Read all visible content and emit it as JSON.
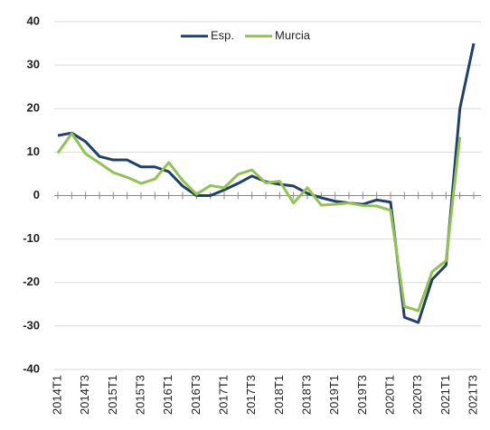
{
  "chart_data": {
    "type": "line",
    "categories": [
      "2014T1",
      null,
      "2014T3",
      null,
      "2015T1",
      null,
      "2015T3",
      null,
      "2016T1",
      null,
      "2016T3",
      null,
      "2017T1",
      null,
      "2017T3",
      null,
      "2018T1",
      null,
      "2018T3",
      null,
      "2019T1",
      null,
      "2019T3",
      null,
      "2020T1",
      null,
      "2020T3",
      null,
      "2021T1",
      null,
      "2021T3"
    ],
    "series": [
      {
        "name": "Esp.",
        "color": "#1f3f6e",
        "values": [
          13.8,
          14.4,
          12.4,
          9,
          8.2,
          8.2,
          6.6,
          6.6,
          5.5,
          2.2,
          0,
          0,
          1.3,
          2.8,
          4.5,
          3.2,
          2.6,
          2.2,
          0.5,
          -0.5,
          -1.3,
          -1.7,
          -2,
          -1,
          -1.5,
          -28,
          -29.2,
          -19.3,
          -16,
          20,
          35
        ]
      },
      {
        "name": "Murcia",
        "color": "#92c350",
        "values": [
          9.8,
          14.3,
          9.6,
          7.5,
          5.3,
          4.2,
          2.8,
          3.8,
          7.6,
          3.5,
          0.3,
          2.3,
          1.8,
          4.9,
          5.9,
          2.9,
          3.3,
          -1.7,
          1.8,
          -2.2,
          -2,
          -1.7,
          -2.3,
          -2.4,
          -3.4,
          -25.5,
          -26.5,
          -17.5,
          -15,
          13.5,
          null
        ]
      }
    ],
    "ylim": [
      -40,
      40
    ],
    "yticks": [
      -40,
      -30,
      -20,
      -10,
      0,
      10,
      20,
      30,
      40
    ],
    "grid": true,
    "legend": "top"
  }
}
